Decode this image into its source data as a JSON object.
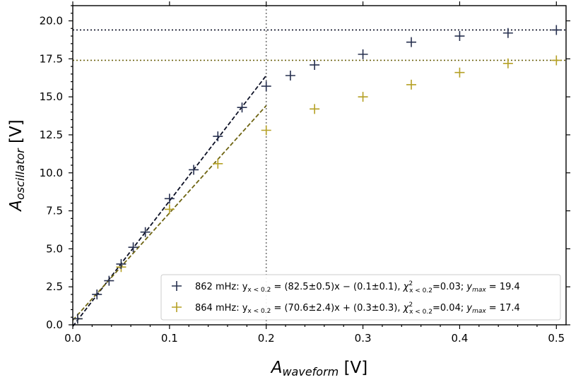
{
  "chart_data": {
    "type": "scatter",
    "xlabel_main": "A",
    "xlabel_sub": "waveform",
    "xlabel_unit": "[V]",
    "ylabel_main": "A",
    "ylabel_sub": "oscillator",
    "ylabel_unit": "[V]",
    "xlim": [
      0.0,
      0.51
    ],
    "ylim": [
      0.0,
      21.0
    ],
    "xticks": [
      "0.0",
      "0.1",
      "0.2",
      "0.3",
      "0.4",
      "0.5"
    ],
    "yticks": [
      "0.0",
      "2.5",
      "5.0",
      "7.5",
      "10.0",
      "12.5",
      "15.0",
      "17.5",
      "20.0"
    ],
    "grid": false,
    "legend_position": "lower-right",
    "vline_x": 0.2,
    "series": [
      {
        "name": "862 mHz",
        "color": "#27304f",
        "fit_color": "#0b0f24",
        "x": [
          0.005,
          0.025,
          0.0375,
          0.05,
          0.0625,
          0.075,
          0.1,
          0.125,
          0.15,
          0.175,
          0.2,
          0.225,
          0.25,
          0.3,
          0.35,
          0.4,
          0.45,
          0.5
        ],
        "y": [
          0.4,
          2.0,
          2.9,
          4.0,
          5.1,
          6.1,
          8.3,
          10.2,
          12.4,
          14.3,
          15.7,
          16.4,
          17.1,
          17.8,
          18.6,
          19.0,
          19.2,
          19.4
        ],
        "fit": {
          "slope": 82.5,
          "intercept": -0.1,
          "x_range": [
            0.0,
            0.2
          ]
        },
        "ymax": 19.4,
        "legend": {
          "prefix": "862 mHz: y",
          "sub": "x < 0.2",
          "fit_text": " = (82.5±0.5)x − (0.1±0.1), ",
          "chi": "χ",
          "chi_sup": "2",
          "chi_sub": "x < 0.2",
          "chi_val": "=0.03; ",
          "ymax_y": "y",
          "ymax_sub": "max",
          "ymax_val": " = 19.4"
        }
      },
      {
        "name": "864 mHz",
        "color": "#b5a024",
        "fit_color": "#6e6412",
        "x": [
          0.005,
          0.05,
          0.1,
          0.15,
          0.2,
          0.25,
          0.3,
          0.35,
          0.4,
          0.45,
          0.5
        ],
        "y": [
          0.4,
          3.8,
          7.6,
          10.6,
          12.8,
          14.2,
          15.0,
          15.8,
          16.6,
          17.2,
          17.4
        ],
        "fit": {
          "slope": 70.6,
          "intercept": 0.3,
          "x_range": [
            0.0,
            0.2
          ]
        },
        "ymax": 17.4,
        "legend": {
          "prefix": "864 mHz: y",
          "sub": "x < 0.2",
          "fit_text": " = (70.6±2.4)x + (0.3±0.3), ",
          "chi": "χ",
          "chi_sup": "2",
          "chi_sub": "x < 0.2",
          "chi_val": "=0.04; ",
          "ymax_y": "y",
          "ymax_sub": "max",
          "ymax_val": " = 17.4"
        }
      }
    ]
  }
}
